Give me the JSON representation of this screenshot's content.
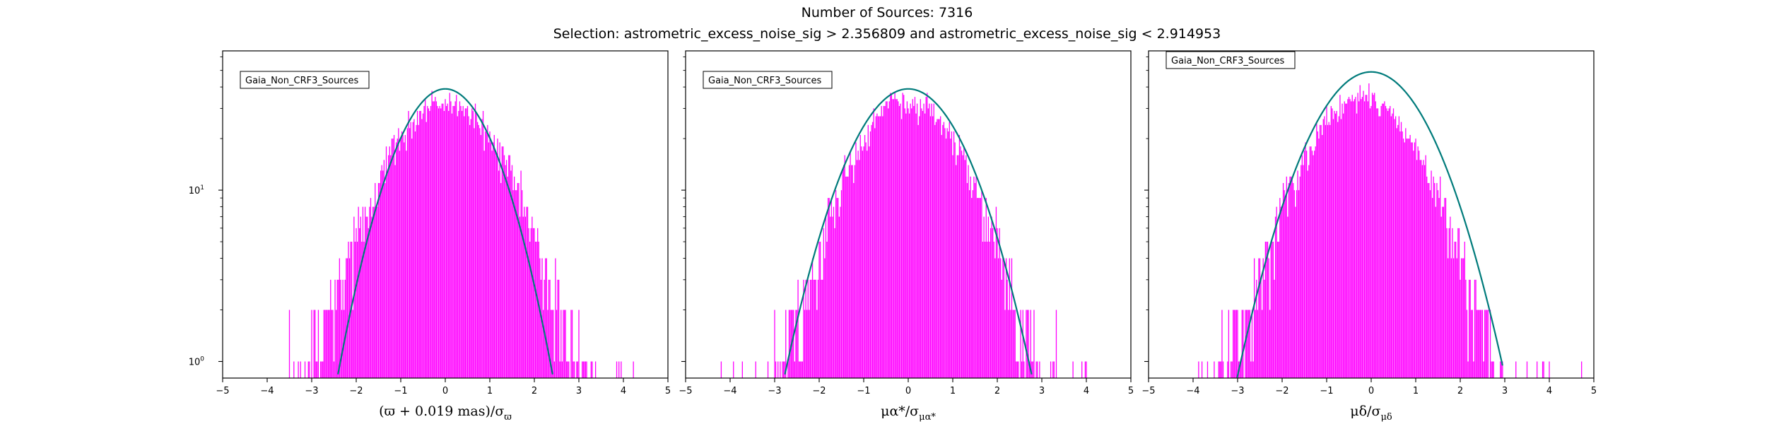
{
  "figure": {
    "title_line1": "Number of Sources: 7316",
    "title_line2": "Selection: astrometric_excess_noise_sig > 2.356809 and astrometric_excess_noise_sig < 2.914953"
  },
  "colors": {
    "histogram": "#ff00ff",
    "model_curve": "#007b7b",
    "axes": "#000000"
  },
  "chart_data": [
    {
      "type": "histogram",
      "legend": "Gaia_Non_CRF3_Sources",
      "legend_placement": "top-left",
      "xlabel": {
        "main": "(ϖ + 0.019 mas)/σ",
        "sub": "ϖ"
      },
      "xlim": [
        -5,
        5
      ],
      "ylim": [
        0.8,
        65
      ],
      "yscale": "log",
      "xticks": [
        "−5",
        "−4",
        "−3",
        "−2",
        "−1",
        "0",
        "1",
        "2",
        "3",
        "4",
        "5"
      ],
      "yticks": [
        {
          "value": 1,
          "base": "10",
          "exp": "0"
        },
        {
          "value": 10,
          "base": "10",
          "exp": "1"
        }
      ],
      "bin_width": 0.025,
      "support": [
        -3.5,
        4.4
      ],
      "peak_center": 0.0,
      "peak_counts": 32,
      "sigma": 1.05,
      "model_curve": {
        "type": "gaussian",
        "mean": 0.0,
        "peak": 39.0,
        "sigma": 0.87,
        "range": [
          -2.75,
          2.75
        ]
      }
    },
    {
      "type": "histogram",
      "legend": "Gaia_Non_CRF3_Sources",
      "legend_placement": "top-left",
      "xlabel": {
        "main": "μα*/σ",
        "sub": "μα*"
      },
      "xlim": [
        -5,
        5
      ],
      "ylim": [
        0.8,
        65
      ],
      "yscale": "log",
      "xticks": [
        "−5",
        "−4",
        "−3",
        "−2",
        "−1",
        "0",
        "1",
        "2",
        "3",
        "4",
        "5"
      ],
      "yticks": [
        {
          "value": 1,
          "base": "10",
          "exp": "0"
        },
        {
          "value": 10,
          "base": "10",
          "exp": "1"
        }
      ],
      "bin_width": 0.025,
      "support": [
        -4.3,
        4.2
      ],
      "peak_center": 0.0,
      "peak_counts": 33,
      "sigma": 1.0,
      "model_curve": {
        "type": "gaussian",
        "mean": 0.0,
        "peak": 39.0,
        "sigma": 1.0,
        "range": [
          -2.85,
          2.9
        ]
      }
    },
    {
      "type": "histogram",
      "legend": "Gaia_Non_CRF3_Sources",
      "legend_placement": "top-left",
      "xlabel": {
        "main": "μδ/σ",
        "sub": "μδ"
      },
      "xlim": [
        -5,
        5
      ],
      "ylim": [
        0.8,
        65
      ],
      "yscale": "log",
      "xticks": [
        "−5",
        "−4",
        "−3",
        "−2",
        "−1",
        "0",
        "1",
        "2",
        "3",
        "4",
        "5"
      ],
      "yticks": [
        {
          "value": 1,
          "base": "10",
          "exp": "0"
        },
        {
          "value": 10,
          "base": "10",
          "exp": "1"
        }
      ],
      "bin_width": 0.025,
      "support": [
        -4.0,
        4.8
      ],
      "peak_center": -0.2,
      "peak_counts": 34,
      "sigma": 1.05,
      "model_curve": {
        "type": "gaussian",
        "mean": 0.0,
        "peak": 49.0,
        "sigma": 1.05,
        "range": [
          -3.05,
          2.95
        ]
      }
    }
  ]
}
